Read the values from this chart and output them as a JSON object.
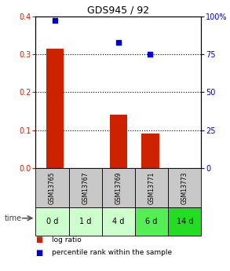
{
  "title": "GDS945 / 92",
  "samples": [
    "GSM13765",
    "GSM13767",
    "GSM13769",
    "GSM13771",
    "GSM13773"
  ],
  "time_labels": [
    "0 d",
    "1 d",
    "4 d",
    "6 d",
    "14 d"
  ],
  "log_ratio": [
    0.315,
    0.0,
    0.14,
    0.09,
    0.0
  ],
  "percentile_rank": [
    97,
    0,
    83,
    75,
    0
  ],
  "bar_color": "#cc2200",
  "dot_color": "#0000cc",
  "ylim_left": [
    0,
    0.4
  ],
  "ylim_right": [
    0,
    100
  ],
  "yticks_left": [
    0,
    0.1,
    0.2,
    0.3,
    0.4
  ],
  "yticks_right": [
    0,
    25,
    50,
    75,
    100
  ],
  "ytick_labels_right": [
    "0",
    "25",
    "50",
    "75",
    "100%"
  ],
  "dotted_lines": [
    0.1,
    0.2,
    0.3
  ],
  "time_colors": [
    "#ccffcc",
    "#ccffcc",
    "#ccffcc",
    "#55ee55",
    "#22dd22"
  ],
  "sample_bg": "#c8c8c8",
  "bar_width": 0.55
}
